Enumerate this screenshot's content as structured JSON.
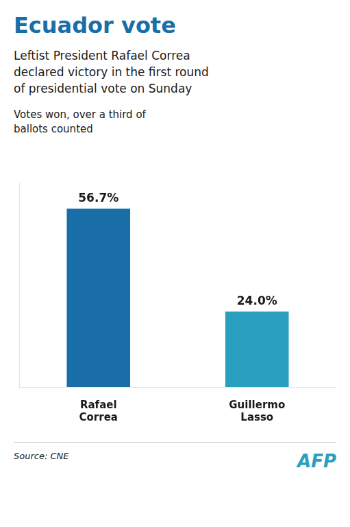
{
  "chart_data": {
    "type": "bar",
    "title": "Ecuador vote",
    "subtitle": "Leftist President Rafael Correa\ndeclared victory in the first round\nof presidential vote on Sunday",
    "annotations": [
      "Votes won, over a third of\nballots counted",
      "Source: CNE",
      "AFP"
    ],
    "categories": [
      "Rafael\nCorrea",
      "Guillermo\nLasso"
    ],
    "values": [
      56.7,
      24.0
    ],
    "value_labels": [
      "56.7%",
      "24.0%"
    ],
    "colors": [
      "#1a6ea8",
      "#2a9fc0"
    ],
    "ylim": [
      0,
      65
    ],
    "data_labels": true,
    "tick_labels": "x",
    "grid": false
  }
}
